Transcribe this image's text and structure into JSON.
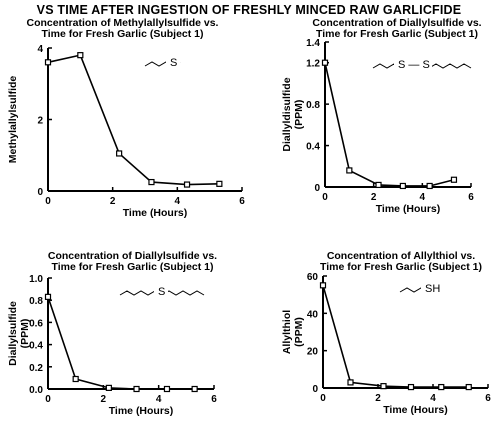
{
  "figure": {
    "title": "VS TIME AFTER INGESTION OF FRESHLY MINCED RAW GARLICFIDE"
  },
  "chart_data": [
    {
      "type": "line",
      "title_line1": "Concentration of Methylallylsulfide vs.",
      "title_line2": "Time for Fresh Garlic (Subject 1)",
      "xlabel": "Time (Hours)",
      "ylabel": "Methylallylsulfide",
      "ylabel2": "",
      "structure_label": "S",
      "xlim": [
        0,
        6
      ],
      "ylim": [
        0,
        4
      ],
      "xticks": [
        {
          "v": 0,
          "t": "0"
        },
        {
          "v": 2,
          "t": "2"
        },
        {
          "v": 4,
          "t": "4"
        },
        {
          "v": 6,
          "t": "6"
        }
      ],
      "yticks": [
        {
          "v": 0,
          "t": "0"
        },
        {
          "v": 2,
          "t": "2"
        },
        {
          "v": 4,
          "t": "4"
        }
      ],
      "x": [
        0,
        1,
        2.2,
        3.2,
        4.3,
        5.3
      ],
      "y": [
        3.6,
        3.8,
        1.05,
        0.25,
        0.18,
        0.2
      ]
    },
    {
      "type": "line",
      "title_line1": "Concentration of Diallylsulfide vs.",
      "title_line2": "Time for Fresh Garlic (Subject 1)",
      "xlabel": "Time (Hours)",
      "ylabel": "Diallyldisulfide",
      "ylabel2": "(PPM)",
      "structure_label": "S — S",
      "xlim": [
        0,
        6
      ],
      "ylim": [
        0,
        1.4
      ],
      "xticks": [
        {
          "v": 0,
          "t": "0"
        },
        {
          "v": 2,
          "t": "2"
        },
        {
          "v": 4,
          "t": "4"
        },
        {
          "v": 6,
          "t": "6"
        }
      ],
      "yticks": [
        {
          "v": 0,
          "t": "0"
        },
        {
          "v": 0.4,
          "t": "0.4"
        },
        {
          "v": 0.8,
          "t": "0.8"
        },
        {
          "v": 1.2,
          "t": "1.2"
        },
        {
          "v": 1.4,
          "t": "1.4"
        }
      ],
      "x": [
        0,
        1,
        2.2,
        3.2,
        4.3,
        5.3
      ],
      "y": [
        1.2,
        0.16,
        0.02,
        0.01,
        0.01,
        0.07
      ]
    },
    {
      "type": "line",
      "title_line1": "Concentration of Diallylsulfide vs.",
      "title_line2": "Time for Fresh Garlic (Subject 1)",
      "xlabel": "Time (Hours)",
      "ylabel": "Diallylsulfide",
      "ylabel2": "(PPM)",
      "structure_label": "S",
      "xlim": [
        0,
        6
      ],
      "ylim": [
        0,
        1
      ],
      "xticks": [
        {
          "v": 0,
          "t": "0"
        },
        {
          "v": 2,
          "t": "2"
        },
        {
          "v": 4,
          "t": "4"
        },
        {
          "v": 6,
          "t": "6"
        }
      ],
      "yticks": [
        {
          "v": 0,
          "t": "0.0"
        },
        {
          "v": 0.2,
          "t": "0.2"
        },
        {
          "v": 0.4,
          "t": "0.4"
        },
        {
          "v": 0.6,
          "t": "0.6"
        },
        {
          "v": 0.8,
          "t": "0.8"
        },
        {
          "v": 1,
          "t": "1.0"
        }
      ],
      "x": [
        0,
        1,
        2.2,
        3.2,
        4.3,
        5.3
      ],
      "y": [
        0.83,
        0.09,
        0.01,
        0.0,
        0.0,
        0.0
      ]
    },
    {
      "type": "line",
      "title_line1": "Concentration of Allylthiol vs.",
      "title_line2": "Time for Fresh Garlic (Subject 1)",
      "xlabel": "Time (Hours)",
      "ylabel": "Allylthiol",
      "ylabel2": "(PPM)",
      "structure_label": "SH",
      "xlim": [
        0,
        6
      ],
      "ylim": [
        0,
        60
      ],
      "xticks": [
        {
          "v": 0,
          "t": "0"
        },
        {
          "v": 2,
          "t": "2"
        },
        {
          "v": 4,
          "t": "4"
        },
        {
          "v": 6,
          "t": "6"
        }
      ],
      "yticks": [
        {
          "v": 0,
          "t": "0"
        },
        {
          "v": 20,
          "t": "20"
        },
        {
          "v": 40,
          "t": "40"
        },
        {
          "v": 60,
          "t": "60"
        }
      ],
      "x": [
        0,
        1,
        2.2,
        3.2,
        4.3,
        5.3
      ],
      "y": [
        55,
        3,
        1,
        0.5,
        0.5,
        0.5
      ]
    }
  ]
}
